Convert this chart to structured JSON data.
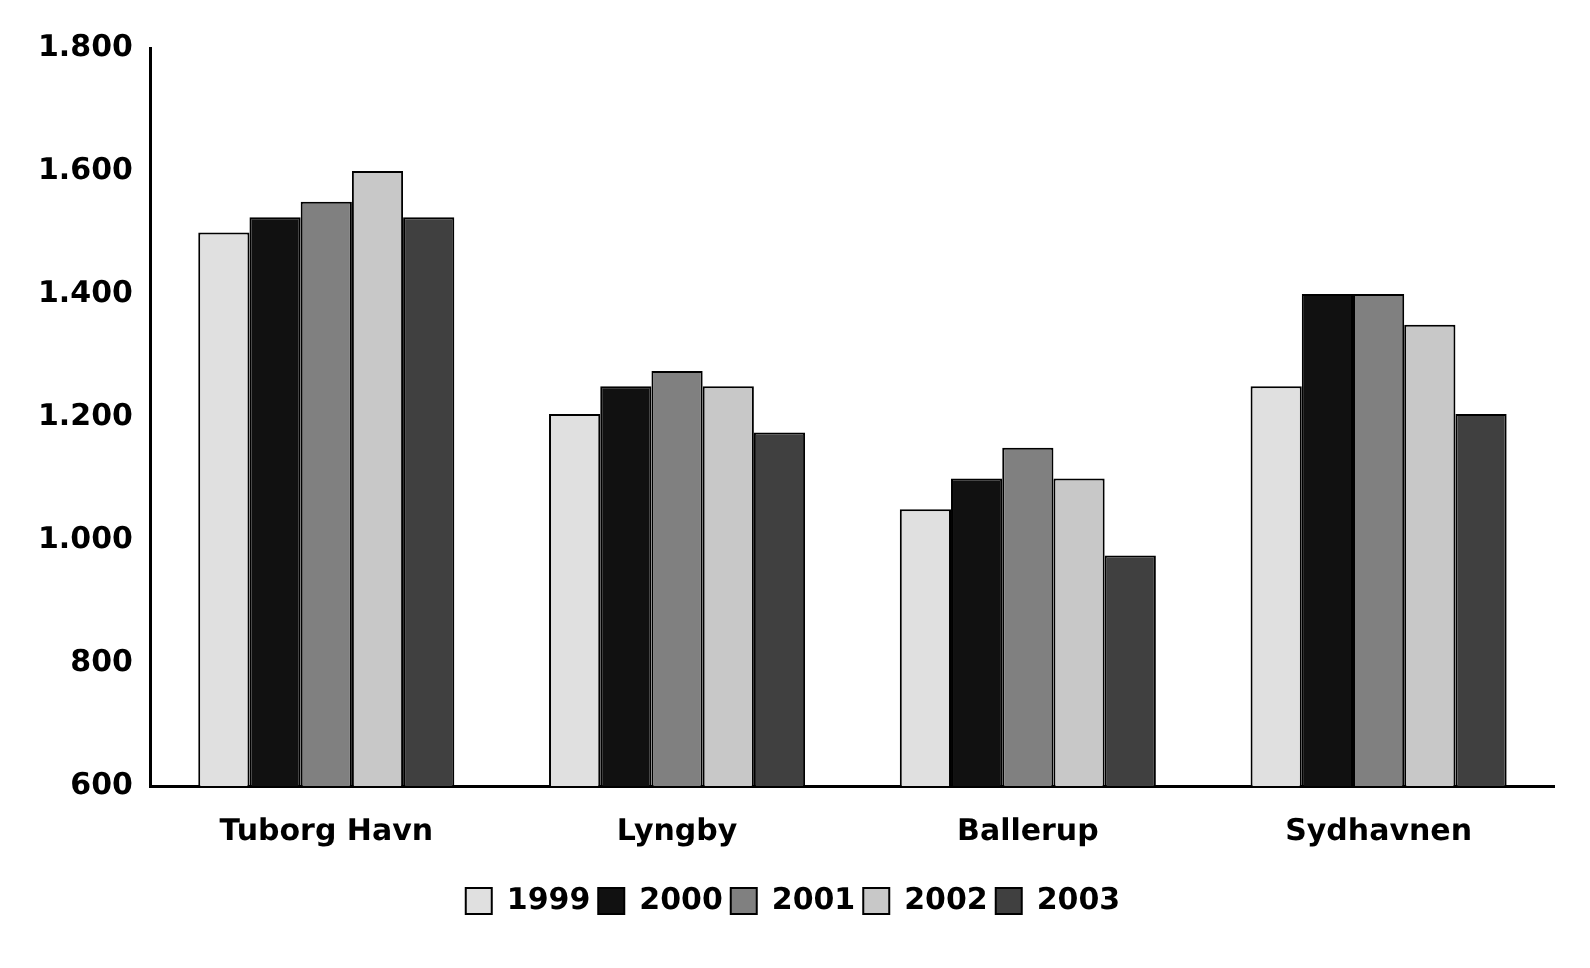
{
  "chart_data": {
    "type": "bar",
    "categories": [
      "Tuborg Havn",
      "Lyngby",
      "Ballerup",
      "Sydhavnen"
    ],
    "series": [
      {
        "name": "1999",
        "color": "#e0e0e0",
        "values": [
          1500,
          1205,
          1050,
          1250
        ]
      },
      {
        "name": "2000",
        "color": "#111111",
        "values": [
          1525,
          1250,
          1100,
          1400
        ]
      },
      {
        "name": "2001",
        "color": "#808080",
        "values": [
          1550,
          1275,
          1150,
          1400
        ]
      },
      {
        "name": "2002",
        "color": "#c8c8c8",
        "values": [
          1600,
          1250,
          1100,
          1350
        ]
      },
      {
        "name": "2003",
        "color": "#404040",
        "values": [
          1525,
          1175,
          975,
          1205
        ]
      }
    ],
    "ylim": [
      600,
      1800
    ],
    "yticks": [
      {
        "value": 600,
        "label": "600"
      },
      {
        "value": 800,
        "label": "800"
      },
      {
        "value": 1000,
        "label": "1.000"
      },
      {
        "value": 1200,
        "label": "1.200"
      },
      {
        "value": 1400,
        "label": "1.400"
      },
      {
        "value": 1600,
        "label": "1.600"
      },
      {
        "value": 1800,
        "label": "1.800"
      }
    ],
    "grid": false,
    "legend": "bottom"
  }
}
